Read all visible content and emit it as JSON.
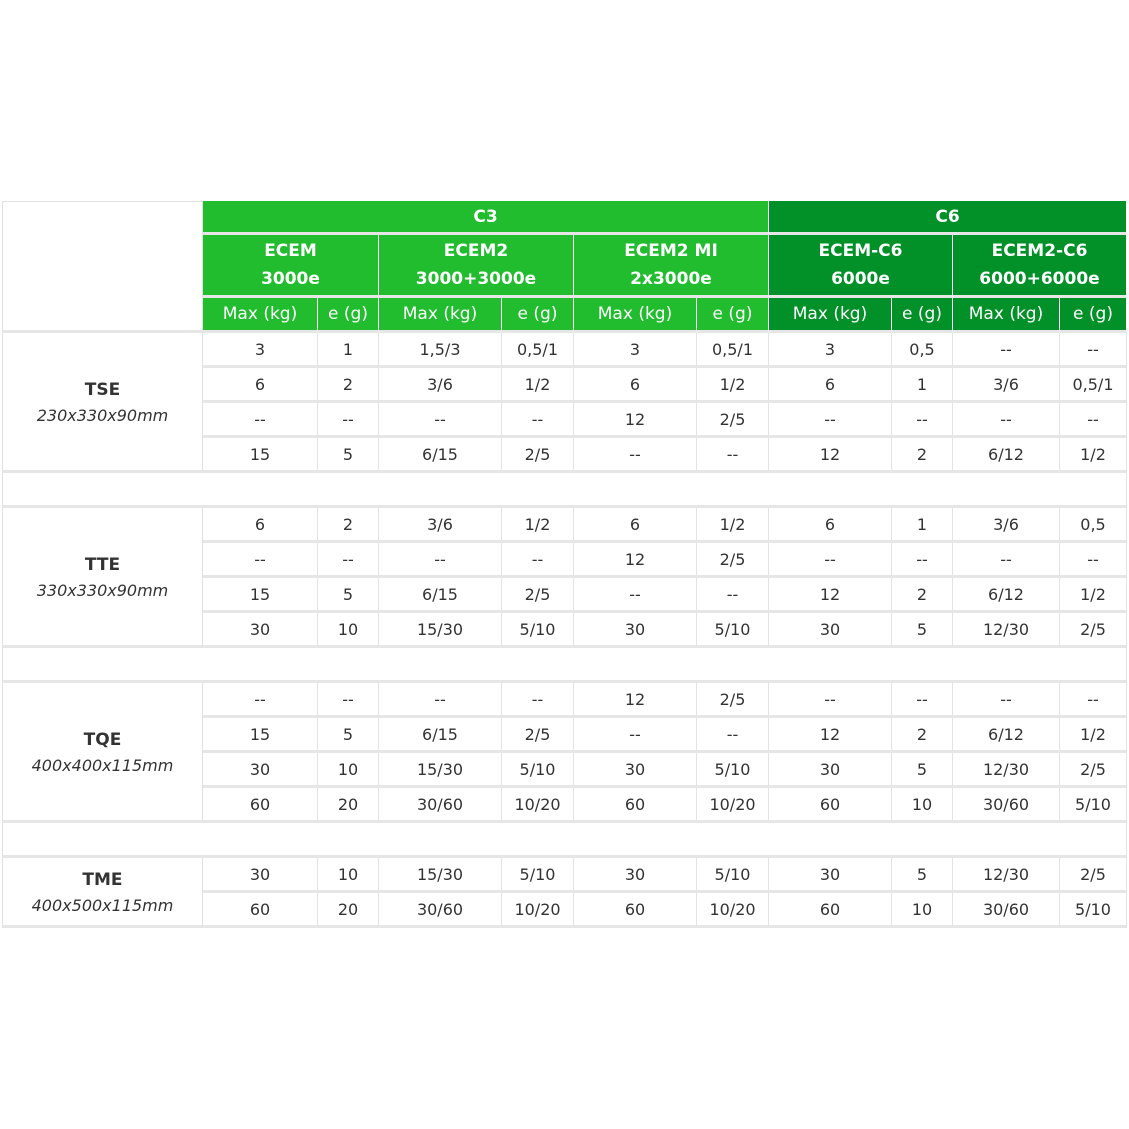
{
  "groups": [
    {
      "label": "C3"
    },
    {
      "label": "C6"
    }
  ],
  "models": [
    {
      "name": "ECEM",
      "resolution": "3000e"
    },
    {
      "name": "ECEM2",
      "resolution": "3000+3000e"
    },
    {
      "name": "ECEM2 MI",
      "resolution": "2x3000e"
    },
    {
      "name": "ECEM-C6",
      "resolution": "6000e"
    },
    {
      "name": "ECEM2-C6",
      "resolution": "6000+6000e"
    }
  ],
  "column_headers": {
    "max": "Max (kg)",
    "e": "e (g)"
  },
  "products": [
    {
      "name": "TSE",
      "dimensions": "230x330x90mm",
      "rows": [
        [
          "3",
          "1",
          "1,5/3",
          "0,5/1",
          "3",
          "0,5/1",
          "3",
          "0,5",
          "--",
          "--"
        ],
        [
          "6",
          "2",
          "3/6",
          "1/2",
          "6",
          "1/2",
          "6",
          "1",
          "3/6",
          "0,5/1"
        ],
        [
          "--",
          "--",
          "--",
          "--",
          "12",
          "2/5",
          "--",
          "--",
          "--",
          "--"
        ],
        [
          "15",
          "5",
          "6/15",
          "2/5",
          "--",
          "--",
          "12",
          "2",
          "6/12",
          "1/2"
        ]
      ]
    },
    {
      "name": "TTE",
      "dimensions": "330x330x90mm",
      "rows": [
        [
          "6",
          "2",
          "3/6",
          "1/2",
          "6",
          "1/2",
          "6",
          "1",
          "3/6",
          "0,5"
        ],
        [
          "--",
          "--",
          "--",
          "--",
          "12",
          "2/5",
          "--",
          "--",
          "--",
          "--"
        ],
        [
          "15",
          "5",
          "6/15",
          "2/5",
          "--",
          "--",
          "12",
          "2",
          "6/12",
          "1/2"
        ],
        [
          "30",
          "10",
          "15/30",
          "5/10",
          "30",
          "5/10",
          "30",
          "5",
          "12/30",
          "2/5"
        ]
      ]
    },
    {
      "name": "TQE",
      "dimensions": "400x400x115mm",
      "rows": [
        [
          "--",
          "--",
          "--",
          "--",
          "12",
          "2/5",
          "--",
          "--",
          "--",
          "--"
        ],
        [
          "15",
          "5",
          "6/15",
          "2/5",
          "--",
          "--",
          "12",
          "2",
          "6/12",
          "1/2"
        ],
        [
          "30",
          "10",
          "15/30",
          "5/10",
          "30",
          "5/10",
          "30",
          "5",
          "12/30",
          "2/5"
        ],
        [
          "60",
          "20",
          "30/60",
          "10/20",
          "60",
          "10/20",
          "60",
          "10",
          "30/60",
          "5/10"
        ]
      ]
    },
    {
      "name": "TME",
      "dimensions": "400x500x115mm",
      "rows": [
        [
          "30",
          "10",
          "15/30",
          "5/10",
          "30",
          "5/10",
          "30",
          "5",
          "12/30",
          "2/5"
        ],
        [
          "60",
          "20",
          "30/60",
          "10/20",
          "60",
          "10/20",
          "60",
          "10",
          "30/60",
          "5/10"
        ]
      ]
    }
  ],
  "colors": {
    "c3_green": "#21bd2f",
    "c6_green": "#029028",
    "border": "#e6e6e6",
    "text": "#333333"
  }
}
